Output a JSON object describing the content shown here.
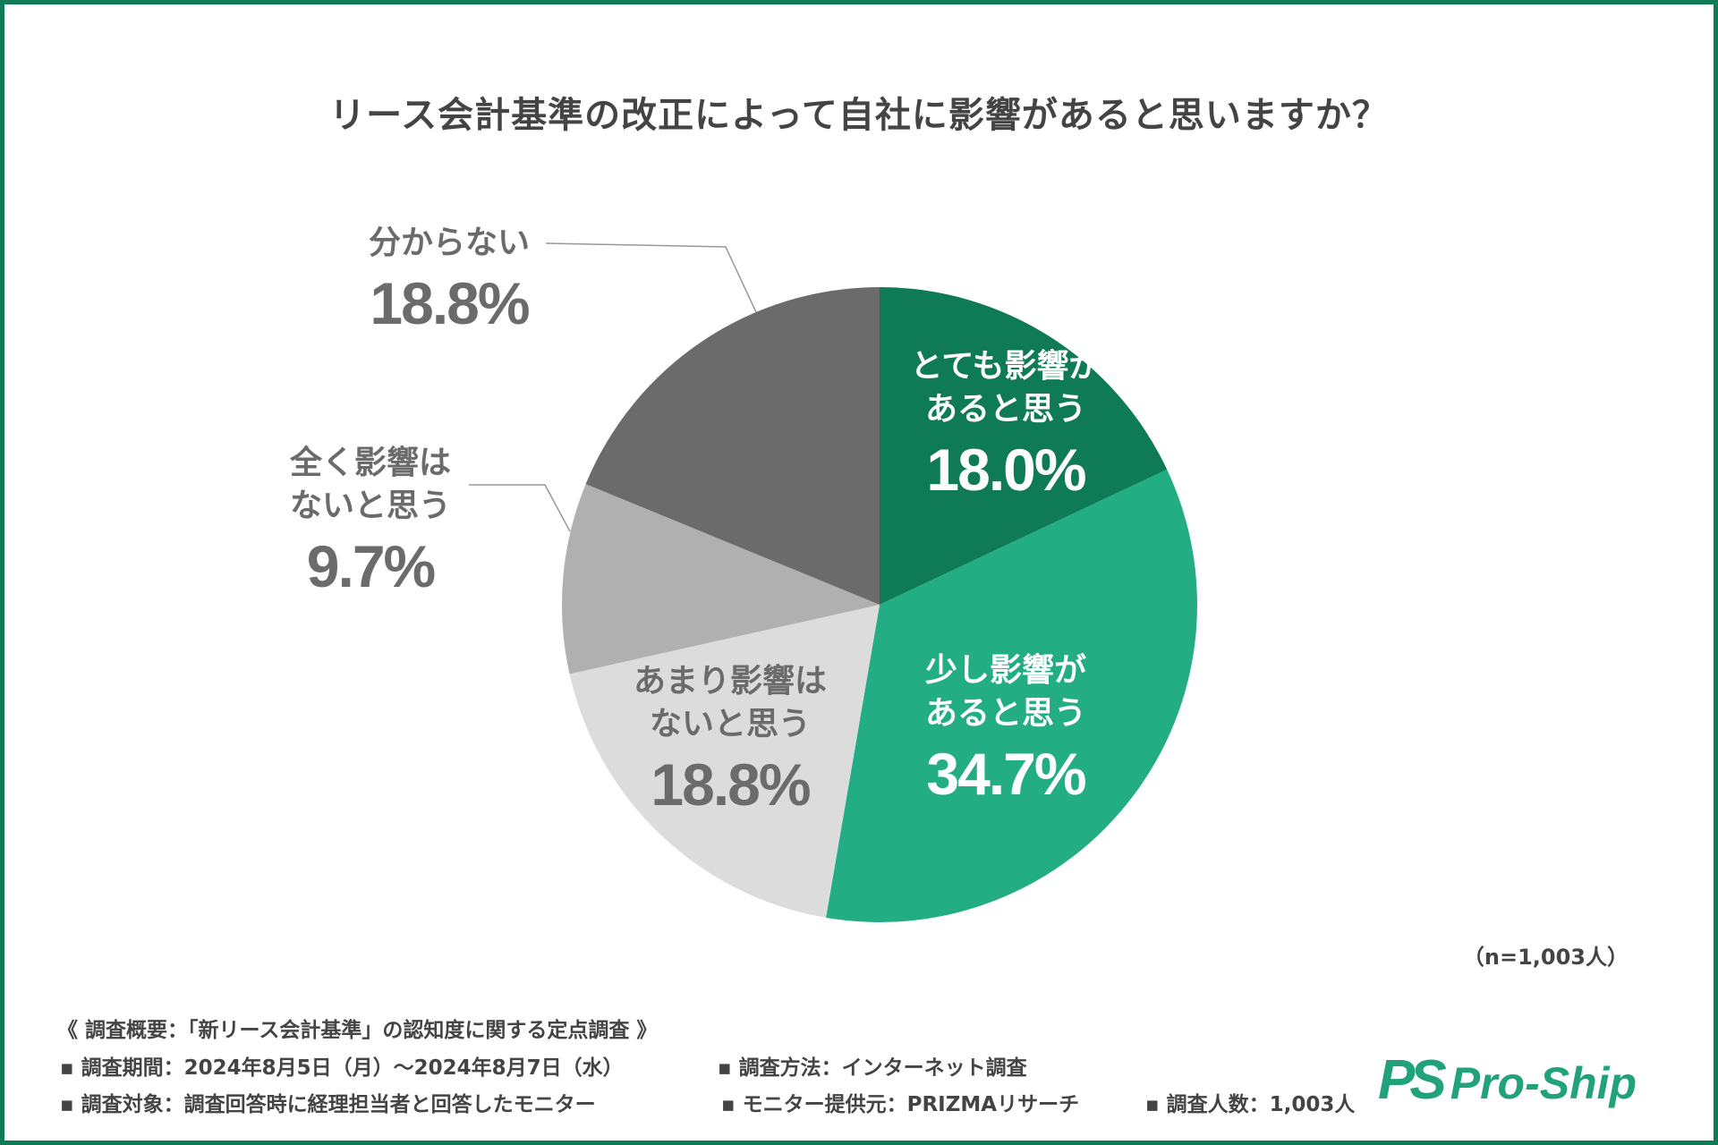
{
  "title": "リース会計基準の改正によって自社に影響があると思いますか？",
  "chart_data": {
    "type": "pie",
    "title": "リース会計基準の改正によって自社に影響があると思いますか？",
    "start": "top",
    "direction": "clockwise",
    "slices": [
      {
        "line1": "とても影響が",
        "line2": "あると思う",
        "value": 18.0,
        "label": "18.0%",
        "color": "#0e7a56",
        "text_color": "#ffffff"
      },
      {
        "line1": "少し影響が",
        "line2": "あると思う",
        "value": 34.7,
        "label": "34.7%",
        "color": "#23ad82",
        "text_color": "#ffffff"
      },
      {
        "line1": "あまり影響は",
        "line2": "ないと思う",
        "value": 18.8,
        "label": "18.8%",
        "color": "#dcdcdc",
        "text_color": "#6b6b6b"
      },
      {
        "line1": "全く影響は",
        "line2": "ないと思う",
        "value": 9.7,
        "label": "9.7%",
        "color": "#b0b0b0",
        "text_color": "#6b6b6b"
      },
      {
        "line1": "分からない",
        "line2": "",
        "value": 18.8,
        "label": "18.8%",
        "color": "#6b6b6b",
        "text_color": "#6b6b6b"
      }
    ]
  },
  "sample": "（n=1,003人）",
  "footer": {
    "heading": "《 調査概要：「新リース会計基準」の認知度に関する定点調査 》",
    "period": "▪ 調査期間：2024年8月5日（月）〜2024年8月7日（水）",
    "method": "▪ 調査方法：インターネット調査",
    "target": "▪ 調査対象：調査回答時に経理担当者と回答したモニター",
    "provider": "▪ モニター提供元：PRIZMAリサーチ",
    "count": "▪ 調査人数：1,003人"
  },
  "logo": {
    "mark": "PS",
    "name": "Pro-Ship"
  },
  "colors": {
    "border": "#0e7a56"
  }
}
